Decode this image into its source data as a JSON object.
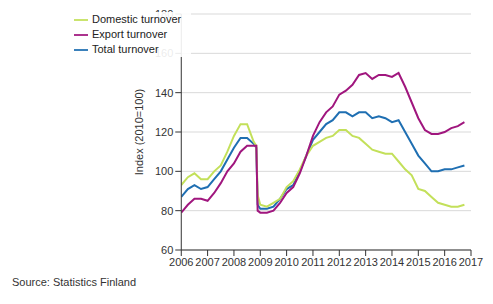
{
  "chart_data": {
    "type": "line",
    "y_label": "Index (2010=100)",
    "source": "Source: Statistics Finland",
    "x": [
      2006,
      2006.25,
      2006.5,
      2006.75,
      2007,
      2007.25,
      2007.5,
      2007.75,
      2008,
      2008.25,
      2008.5,
      2008.75,
      2008.85,
      2008.9,
      2009,
      2009.25,
      2009.5,
      2009.75,
      2010,
      2010.25,
      2010.5,
      2010.75,
      2011,
      2011.25,
      2011.5,
      2011.75,
      2012,
      2012.25,
      2012.5,
      2012.75,
      2013,
      2013.25,
      2013.5,
      2013.75,
      2014,
      2014.25,
      2014.5,
      2014.75,
      2015,
      2015.25,
      2015.5,
      2015.75,
      2016,
      2016.25,
      2016.5,
      2016.75
    ],
    "series": [
      {
        "name": "Total turnover",
        "color": "#1f6fb2",
        "values": [
          87,
          91,
          93,
          91,
          92,
          96,
          100,
          106,
          112,
          117,
          117,
          114,
          112,
          83,
          81,
          81,
          82,
          86,
          91,
          93,
          100,
          108,
          116,
          120,
          124,
          126,
          130,
          130,
          128,
          130,
          130,
          127,
          128,
          127,
          125,
          126,
          120,
          114,
          108,
          104,
          100,
          100,
          101,
          101,
          102,
          103
        ]
      },
      {
        "name": "Domestic turnover",
        "color": "#c3e05a",
        "values": [
          93,
          97,
          99,
          96,
          96,
          100,
          103,
          110,
          118,
          124,
          124,
          115,
          113,
          88,
          83,
          82,
          84,
          86,
          92,
          95,
          101,
          108,
          113,
          115,
          117,
          118,
          121,
          121,
          118,
          117,
          114,
          111,
          110,
          109,
          109,
          105,
          101,
          98,
          91,
          90,
          87,
          84,
          83,
          82,
          82,
          83
        ]
      },
      {
        "name": "Export turnover",
        "color": "#a0167e",
        "values": [
          79,
          83,
          86,
          86,
          85,
          89,
          94,
          100,
          104,
          110,
          113,
          113,
          113,
          80,
          79,
          79,
          80,
          84,
          89,
          92,
          99,
          108,
          118,
          125,
          130,
          133,
          139,
          141,
          144,
          149,
          150,
          147,
          149,
          149,
          148,
          150,
          143,
          135,
          127,
          121,
          119,
          119,
          120,
          122,
          123,
          125
        ]
      }
    ],
    "xlim": [
      2006,
      2017
    ],
    "xticks": [
      2006,
      2007,
      2008,
      2009,
      2010,
      2011,
      2012,
      2013,
      2014,
      2015,
      2016,
      2017
    ],
    "ylim": [
      60,
      180
    ],
    "yticks": [
      60,
      80,
      100,
      120,
      140,
      160,
      180
    ],
    "grid": true,
    "legend": "upper left"
  }
}
